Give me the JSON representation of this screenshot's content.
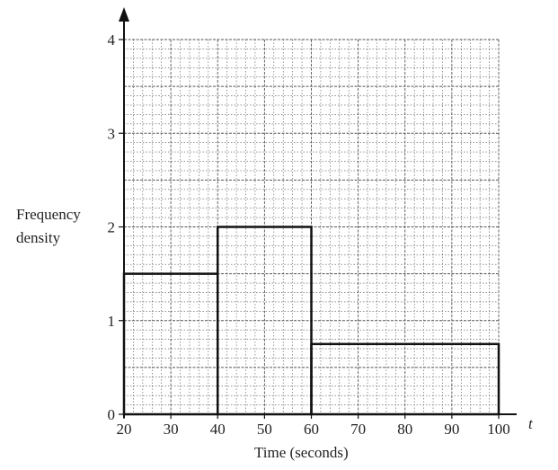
{
  "chart_data": {
    "type": "histogram",
    "title": "",
    "xlabel": "Time (seconds)",
    "ylabel": "Frequency density",
    "x_axis_var": "t",
    "xlim": [
      20,
      100
    ],
    "ylim": [
      0,
      4
    ],
    "xticks": [
      "20",
      "30",
      "40",
      "50",
      "60",
      "70",
      "80",
      "90",
      "100"
    ],
    "yticks": [
      "0",
      "1",
      "2",
      "3",
      "4"
    ],
    "grid": true,
    "bars": [
      {
        "from": 20,
        "to": 40,
        "density": 1.5
      },
      {
        "from": 40,
        "to": 60,
        "density": 2
      },
      {
        "from": 60,
        "to": 100,
        "density": 0.75
      }
    ],
    "colors": {
      "line": "#111111",
      "grid": "#555555"
    }
  }
}
